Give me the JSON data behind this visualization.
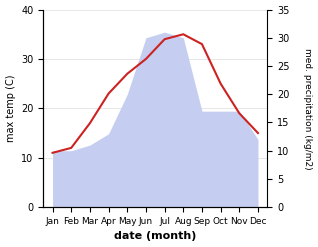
{
  "months": [
    "Jan",
    "Feb",
    "Mar",
    "Apr",
    "May",
    "Jun",
    "Jul",
    "Aug",
    "Sep",
    "Oct",
    "Nov",
    "Dec"
  ],
  "temperature": [
    11,
    12,
    17,
    23,
    27,
    30,
    34,
    35,
    33,
    25,
    19,
    15
  ],
  "precipitation_raw": [
    10,
    10,
    11,
    13,
    20,
    30,
    31,
    30,
    17,
    17,
    17,
    12
  ],
  "temp_color": "#cc2222",
  "precip_fill_color": "#c5cef0",
  "temp_ylim": [
    0,
    40
  ],
  "precip_ylim": [
    0,
    35
  ],
  "temp_yticks": [
    0,
    10,
    20,
    30,
    40
  ],
  "precip_yticks": [
    0,
    5,
    10,
    15,
    20,
    25,
    30,
    35
  ],
  "xlabel": "date (month)",
  "ylabel_left": "max temp (C)",
  "ylabel_right": "med. precipitation (kg/m2)",
  "figsize": [
    3.18,
    2.47
  ],
  "dpi": 100
}
